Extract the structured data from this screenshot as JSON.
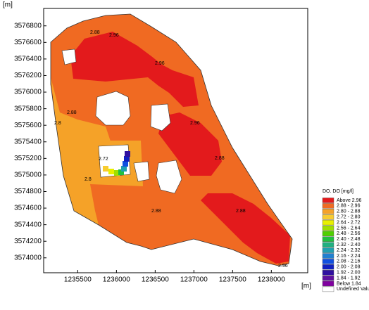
{
  "chart_data": {
    "type": "contour",
    "xlabel": "[m]",
    "ylabel": "[m]",
    "xlim": [
      1235060,
      1238470
    ],
    "xticks": [
      1235500,
      1236000,
      1236500,
      1237000,
      1237500,
      1238000
    ],
    "ylim": [
      3573820,
      3577010
    ],
    "yticks": [
      3574000,
      3574200,
      3574400,
      3574600,
      3574800,
      3575000,
      3575200,
      3575400,
      3575600,
      3575800,
      3576000,
      3576200,
      3576400,
      3576600,
      3576800
    ],
    "legend_title": "DO. DO [mg/l]",
    "legend": [
      {
        "label": "Above 2.96",
        "color": "#e31a1c"
      },
      {
        "label": "2.88 - 2.96",
        "color": "#f06a22"
      },
      {
        "label": "2.80 - 2.88",
        "color": "#f5a228"
      },
      {
        "label": "2.72 - 2.80",
        "color": "#f8cc30"
      },
      {
        "label": "2.64 - 2.72",
        "color": "#e8f000"
      },
      {
        "label": "2.56 - 2.64",
        "color": "#a0e000"
      },
      {
        "label": "2.48 - 2.56",
        "color": "#50d000"
      },
      {
        "label": "2.40 - 2.48",
        "color": "#20c040"
      },
      {
        "label": "2.32 - 2.40",
        "color": "#20b080"
      },
      {
        "label": "2.24 - 2.32",
        "color": "#20a0b0"
      },
      {
        "label": "2.16 - 2.24",
        "color": "#2080d0"
      },
      {
        "label": "2.08 - 2.16",
        "color": "#1050e0"
      },
      {
        "label": "2.00 - 2.08",
        "color": "#1020c0"
      },
      {
        "label": "1.92 - 2.00",
        "color": "#3010a0"
      },
      {
        "label": "1.84 - 1.92",
        "color": "#6010a0"
      },
      {
        "label": "Below 1.84",
        "color": "#8000a0"
      },
      {
        "label": "Undefined Value",
        "color": "#ffffff"
      }
    ],
    "contour_labels": [
      "2.96",
      "2.88",
      "2.96",
      "2.88",
      "2.8",
      "2.96",
      "2.88",
      "2.72",
      "2.8",
      "2.88",
      "2.88",
      "2.96"
    ]
  }
}
